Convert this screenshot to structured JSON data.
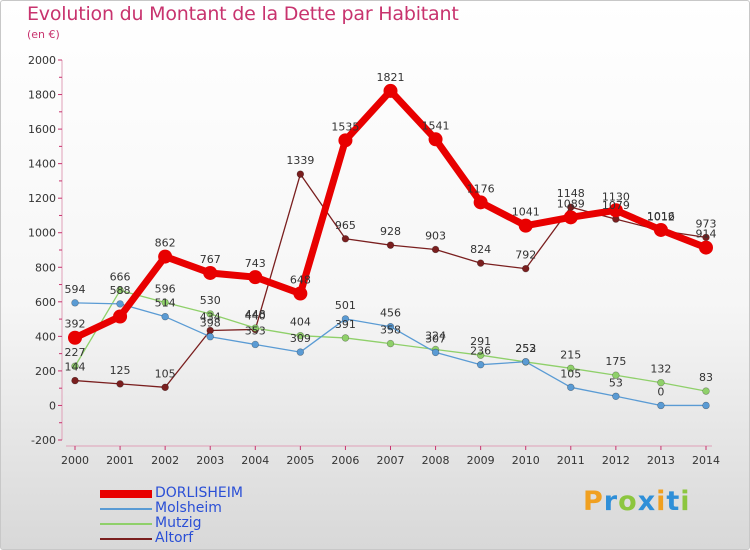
{
  "header": {
    "title": "Evolution du Montant de la Dette par Habitant",
    "unit": "(en €)"
  },
  "logo": {
    "letters": [
      "P",
      "r",
      "o",
      "x",
      "i",
      "t",
      "i"
    ],
    "colors": [
      "#f0a020",
      "#2f8fd8",
      "#8cc63f",
      "#2f8fd8",
      "#f0a020",
      "#2f8fd8",
      "#8cc63f"
    ]
  },
  "chart_data": {
    "type": "line",
    "title": "Evolution du Montant de la Dette par Habitant",
    "ylabel": "(en €)",
    "xlabel": "",
    "x": [
      "2000",
      "2001",
      "2002",
      "2003",
      "2004",
      "2005",
      "2006",
      "2007",
      "2008",
      "2009",
      "2010",
      "2011",
      "2012",
      "2013",
      "2014"
    ],
    "ylim": [
      -200,
      2000
    ],
    "yticks": [
      "-200",
      "0",
      "200",
      "400",
      "600",
      "800",
      "1000",
      "1200",
      "1400",
      "1600",
      "1800",
      "2000"
    ],
    "grid": false,
    "legend_position": "bottom-left",
    "series": [
      {
        "name": "DORLISHEIM",
        "color": "#e80000",
        "values": [
          392,
          515,
          862,
          767,
          743,
          648,
          1535,
          1821,
          1541,
          1176,
          1041,
          1089,
          1130,
          1016,
          914
        ],
        "labels": [
          "392",
          "",
          "862",
          "767",
          "743",
          "648",
          "1535",
          "1821",
          "1541",
          "1176",
          "1041",
          "1089",
          "1130",
          "1016",
          "914"
        ]
      },
      {
        "name": "Molsheim",
        "color": "#5a9bd4",
        "values": [
          594,
          588,
          514,
          398,
          353,
          309,
          501,
          456,
          307,
          236,
          253,
          105,
          53,
          0,
          0
        ],
        "labels": [
          "594",
          "588",
          "514",
          "398",
          "353",
          "309",
          "501",
          "456",
          "307",
          "236",
          "253",
          "105",
          "53",
          "0",
          ""
        ]
      },
      {
        "name": "Mutzig",
        "color": "#8fd06a",
        "values": [
          227,
          666,
          596,
          530,
          448,
          404,
          391,
          358,
          324,
          291,
          252,
          215,
          175,
          132,
          83
        ],
        "labels": [
          "227",
          "666",
          "596",
          "530",
          "448",
          "404",
          "391",
          "358",
          "324",
          "291",
          "252",
          "215",
          "175",
          "132",
          "83"
        ]
      },
      {
        "name": "Altorf",
        "color": "#7a1f1f",
        "values": [
          144,
          125,
          105,
          434,
          440,
          1339,
          965,
          928,
          903,
          824,
          792,
          1148,
          1079,
          1012,
          973
        ],
        "labels": [
          "144",
          "125",
          "105",
          "434",
          "440",
          "1339",
          "965",
          "928",
          "903",
          "824",
          "792",
          "1148",
          "1079",
          "1012",
          "973"
        ]
      }
    ]
  }
}
